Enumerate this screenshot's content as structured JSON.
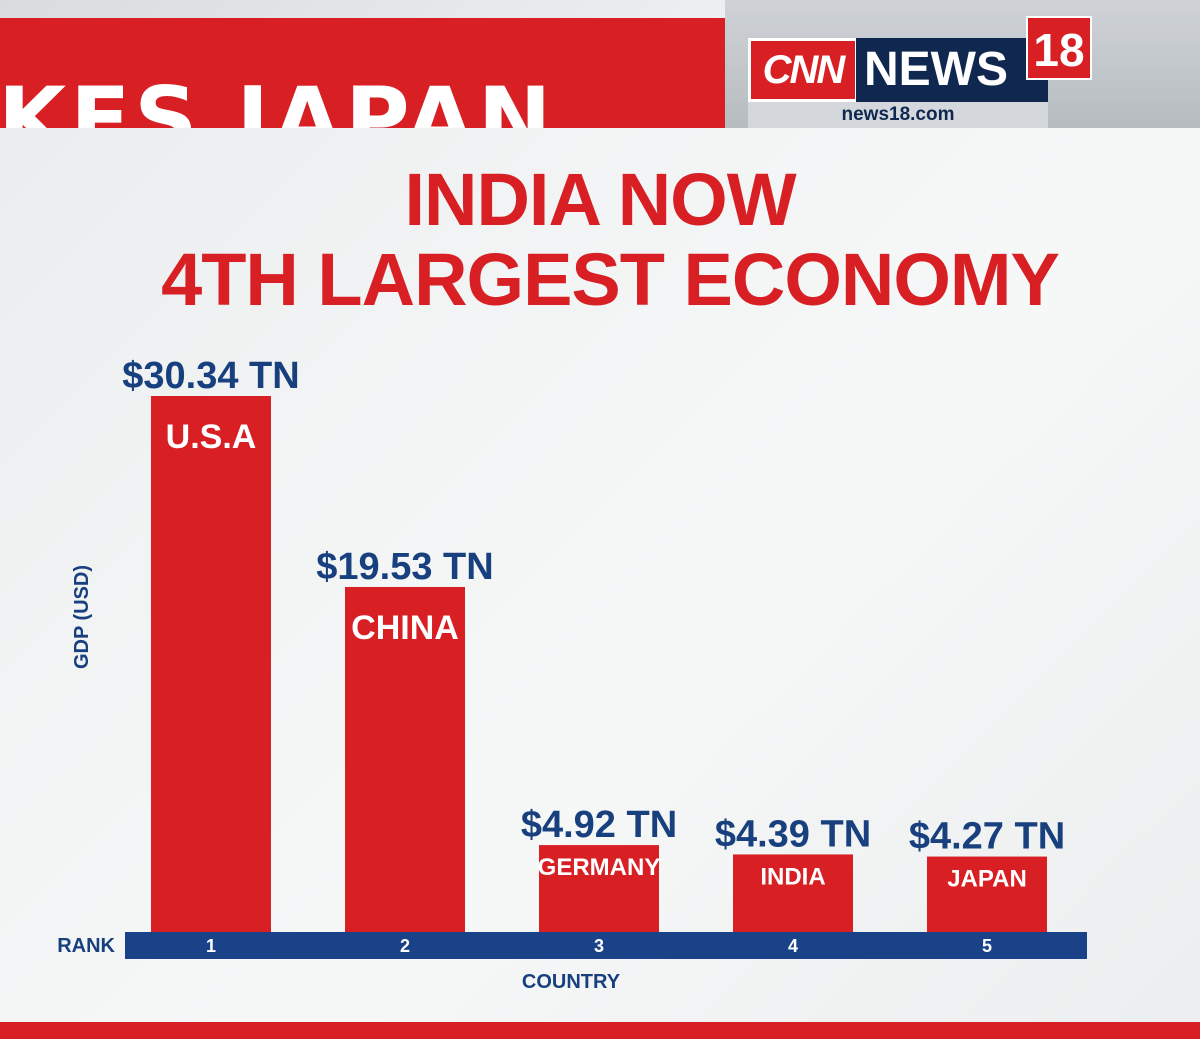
{
  "ticker": {
    "text": "KES JAPAN"
  },
  "logo": {
    "cnn": "CNN",
    "news": "NEWS",
    "number": "18",
    "url": "news18.com"
  },
  "headline": {
    "line1": "INDIA NOW",
    "line2": "4TH LARGEST ECONOMY"
  },
  "colors": {
    "bar": "#d71f24",
    "axis_band": "#1a4289",
    "label_text": "#18407e",
    "accent_red": "#d71f24"
  },
  "chart_data": {
    "type": "bar",
    "title": "INDIA NOW 4TH LARGEST ECONOMY",
    "xlabel": "COUNTRY",
    "ylabel": "GDP (USD)",
    "rank_label": "RANK",
    "unit": "TN",
    "ylim": [
      0,
      30.34
    ],
    "grid": false,
    "legend": "none",
    "categories": [
      "U.S.A",
      "CHINA",
      "GERMANY",
      "INDIA",
      "JAPAN"
    ],
    "ranks": [
      "1",
      "2",
      "3",
      "4",
      "5"
    ],
    "values": [
      30.34,
      19.53,
      4.92,
      4.39,
      4.27
    ],
    "value_labels": [
      "$30.34 TN",
      "$19.53 TN",
      "$4.92 TN",
      "$4.39 TN",
      "$4.27 TN"
    ]
  }
}
